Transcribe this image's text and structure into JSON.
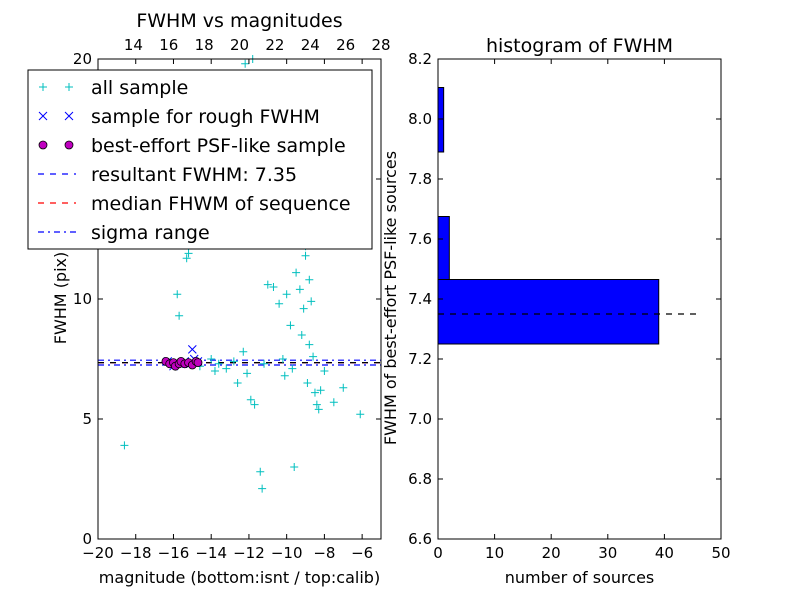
{
  "chart_data": [
    {
      "type": "scatter",
      "title": "FWHM vs magnitudes",
      "xlabel": "magnitude (bottom:isnt / top:calib)",
      "ylabel": "FWHM (pix)",
      "xlim": [
        -20,
        -5
      ],
      "ylim": [
        0,
        20
      ],
      "x_ticks": [
        -20,
        -18,
        -16,
        -14,
        -12,
        -10,
        -8,
        -6
      ],
      "x_tick_labels": [
        "−20",
        "−18",
        "−16",
        "−14",
        "−12",
        "−10",
        "−8",
        "−6"
      ],
      "y_ticks": [
        0,
        5,
        10,
        15,
        20
      ],
      "y_tick_labels": [
        "0",
        "5",
        "10",
        "15",
        "20"
      ],
      "top_axis": {
        "xlim": [
          12,
          28
        ],
        "ticks": [
          14,
          16,
          18,
          20,
          22,
          24,
          26,
          28
        ],
        "tick_labels": [
          "14",
          "16",
          "18",
          "20",
          "22",
          "24",
          "26",
          "28"
        ]
      },
      "grid": false,
      "legend_position": "top-left",
      "legend": [
        {
          "label": "all sample",
          "marker": "plus",
          "color": "#00bfbf"
        },
        {
          "label": "sample for rough FWHM",
          "marker": "x",
          "color": "#0000ff"
        },
        {
          "label": "best-effort PSF-like sample",
          "marker": "circle",
          "color": "#bf00bf"
        },
        {
          "label": "resultant FWHM: 7.35",
          "marker": "dashed",
          "color": "#0000ff"
        },
        {
          "label": "median FHWM of sequence",
          "marker": "dashed",
          "color": "#ff0000"
        },
        {
          "label": "sigma range",
          "marker": "dashdot",
          "color": "#0000ff"
        }
      ],
      "series": [
        {
          "name": "all sample",
          "marker": "plus",
          "color": "#00bfbf",
          "points": [
            [
              -18.6,
              3.9
            ],
            [
              -15.8,
              10.2
            ],
            [
              -15.7,
              9.3
            ],
            [
              -15.3,
              11.7
            ],
            [
              -15.2,
              11.9
            ],
            [
              -14.6,
              7.2
            ],
            [
              -14.0,
              7.5
            ],
            [
              -13.8,
              7.0
            ],
            [
              -13.6,
              7.3
            ],
            [
              -13.2,
              7.1
            ],
            [
              -12.8,
              7.4
            ],
            [
              -12.6,
              6.5
            ],
            [
              -12.3,
              7.8
            ],
            [
              -12.1,
              6.9
            ],
            [
              -11.9,
              5.8
            ],
            [
              -11.7,
              5.6
            ],
            [
              -11.4,
              2.8
            ],
            [
              -11.3,
              2.1
            ],
            [
              -11.2,
              7.3
            ],
            [
              -11.0,
              10.6
            ],
            [
              -10.7,
              10.5
            ],
            [
              -10.5,
              12.3
            ],
            [
              -10.4,
              9.8
            ],
            [
              -10.2,
              7.5
            ],
            [
              -10.1,
              6.8
            ],
            [
              -10.0,
              10.2
            ],
            [
              -9.9,
              12.9
            ],
            [
              -9.8,
              8.9
            ],
            [
              -9.7,
              7.1
            ],
            [
              -9.6,
              3.0
            ],
            [
              -9.5,
              11.1
            ],
            [
              -9.4,
              12.6
            ],
            [
              -9.3,
              10.4
            ],
            [
              -9.2,
              8.5
            ],
            [
              -9.1,
              9.6
            ],
            [
              -9.0,
              11.8
            ],
            [
              -8.9,
              6.5
            ],
            [
              -8.8,
              8.1
            ],
            [
              -8.7,
              9.9
            ],
            [
              -8.6,
              7.6
            ],
            [
              -8.5,
              6.1
            ],
            [
              -8.4,
              5.6
            ],
            [
              -8.3,
              5.4
            ],
            [
              -8.2,
              6.2
            ],
            [
              -8.0,
              7.0
            ],
            [
              -7.5,
              5.7
            ],
            [
              -7.0,
              6.3
            ],
            [
              -6.1,
              5.2
            ],
            [
              -12.2,
              19.8
            ],
            [
              -11.8,
              20.0
            ],
            [
              -9.6,
              14.2
            ],
            [
              -9.2,
              13.6
            ],
            [
              -9.0,
              12.2
            ],
            [
              -8.8,
              10.8
            ]
          ]
        },
        {
          "name": "sample for rough FWHM",
          "marker": "x",
          "color": "#0000ff",
          "points": [
            [
              -16.3,
              7.4
            ],
            [
              -16.0,
              7.2
            ],
            [
              -15.7,
              7.3
            ],
            [
              -15.4,
              7.4
            ],
            [
              -15.1,
              7.3
            ],
            [
              -15.0,
              7.9
            ],
            [
              -14.9,
              7.5
            ],
            [
              -14.7,
              7.4
            ]
          ]
        },
        {
          "name": "best-effort PSF-like sample",
          "marker": "circle",
          "color": "#bf00bf",
          "points": [
            [
              -16.4,
              7.4
            ],
            [
              -16.2,
              7.3
            ],
            [
              -16.0,
              7.35
            ],
            [
              -15.9,
              7.2
            ],
            [
              -15.7,
              7.3
            ],
            [
              -15.6,
              7.4
            ],
            [
              -15.4,
              7.3
            ],
            [
              -15.2,
              7.35
            ],
            [
              -15.0,
              7.25
            ],
            [
              -14.8,
              7.4
            ],
            [
              -14.7,
              7.35
            ]
          ]
        }
      ],
      "lines": [
        {
          "name": "resultant FWHM: 7.35",
          "y": 7.35,
          "style": "dashed",
          "color": "#0000ff"
        },
        {
          "name": "median FHWM of sequence",
          "y": 7.35,
          "style": "dashed",
          "color": "#ff0000"
        },
        {
          "name": "sigma range",
          "y": 7.25,
          "style": "dashdot",
          "color": "#0000ff"
        },
        {
          "name": "sigma range",
          "y": 7.45,
          "style": "dashdot",
          "color": "#0000ff"
        },
        {
          "y": 7.35,
          "style": "dashed",
          "color": "#000000"
        }
      ]
    },
    {
      "type": "bar",
      "orientation": "horizontal",
      "title": "histogram of FWHM",
      "xlabel": "number of sources",
      "ylabel": "FWHM of best-effort PSF-like sources",
      "xlim": [
        0,
        50
      ],
      "ylim": [
        6.6,
        8.2
      ],
      "x_ticks": [
        0,
        10,
        20,
        30,
        40,
        50
      ],
      "x_tick_labels": [
        "0",
        "10",
        "20",
        "30",
        "40",
        "50"
      ],
      "y_ticks": [
        6.6,
        6.8,
        7.0,
        7.2,
        7.4,
        7.6,
        7.8,
        8.0,
        8.2
      ],
      "y_tick_labels": [
        "6.6",
        "6.8",
        "7.0",
        "7.2",
        "7.4",
        "7.6",
        "7.8",
        "8.0",
        "8.2"
      ],
      "bar_color": "#0000ff",
      "bins": [
        {
          "low": 7.25,
          "high": 7.465,
          "count": 39
        },
        {
          "low": 7.465,
          "high": 7.675,
          "count": 2
        },
        {
          "low": 7.675,
          "high": 7.89,
          "count": 0
        },
        {
          "low": 7.89,
          "high": 8.105,
          "count": 1
        }
      ],
      "reference_line": {
        "y": 7.35,
        "style": "dashed",
        "color": "#000000",
        "x_range": [
          0,
          46
        ]
      }
    }
  ]
}
